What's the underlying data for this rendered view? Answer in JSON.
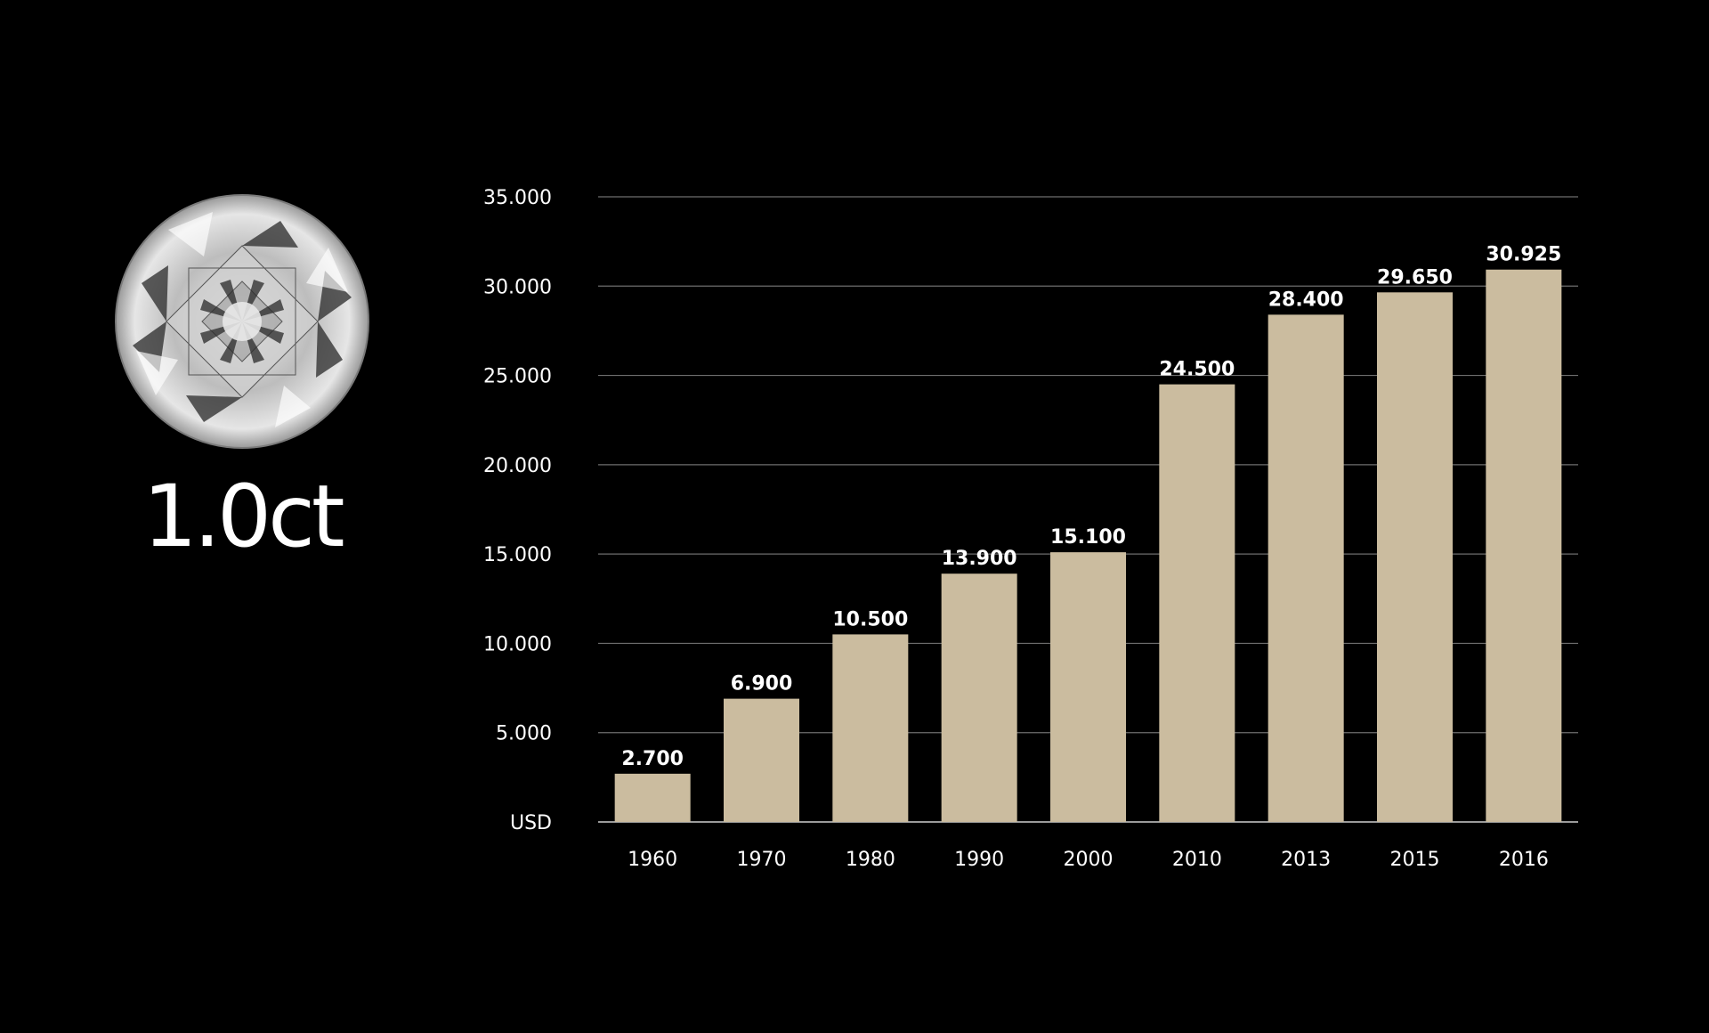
{
  "carat_label": "1.0ct",
  "diamond_icon": "round-brilliant-diamond-icon",
  "colors": {
    "background": "#000000",
    "bar": "#cbbc9f",
    "grid": "#6e6e6e",
    "text": "#ffffff"
  },
  "chart_data": {
    "type": "bar",
    "categories": [
      "1960",
      "1970",
      "1980",
      "1990",
      "2000",
      "2010",
      "2013",
      "2015",
      "2016"
    ],
    "values": [
      2700,
      6900,
      10500,
      13900,
      15100,
      24500,
      28400,
      29650,
      30925
    ],
    "value_labels": [
      "2.700",
      "6.900",
      "10.500",
      "13.900",
      "15.100",
      "24.500",
      "28.400",
      "29.650",
      "30.925"
    ],
    "y_ticks": [
      0,
      5000,
      10000,
      15000,
      20000,
      25000,
      30000,
      35000
    ],
    "y_tick_labels": [
      "USD",
      "5.000",
      "10.000",
      "15.000",
      "20.000",
      "25.000",
      "30.000",
      "35.000"
    ],
    "ylim": [
      0,
      35000
    ],
    "grid": true,
    "title": "",
    "xlabel": "",
    "ylabel": ""
  }
}
